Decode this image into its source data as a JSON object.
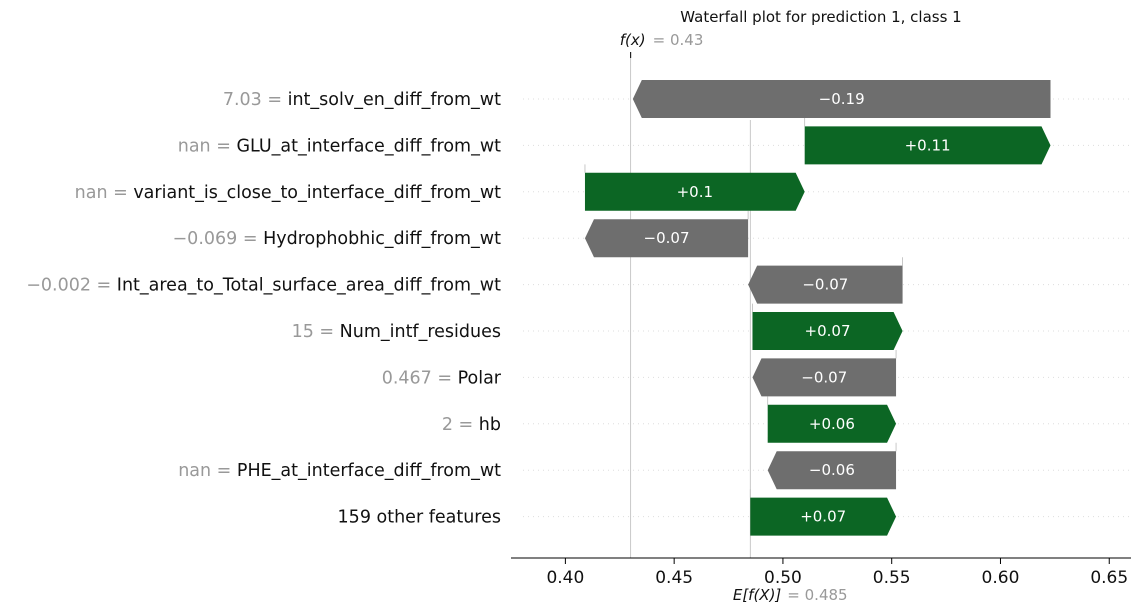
{
  "chart_data": {
    "type": "waterfall",
    "title": "Waterfall plot for prediction 1, class 1",
    "fx_label": "f(x)",
    "fx_value": "= 0.43",
    "fx": 0.43,
    "base_label": "E[f(X)]",
    "base_value": "= 0.485",
    "base": 0.485,
    "xlim": [
      0.375,
      0.66
    ],
    "xticks": [
      0.4,
      0.45,
      0.5,
      0.55,
      0.6,
      0.65
    ],
    "xtick_labels": [
      "0.40",
      "0.45",
      "0.50",
      "0.55",
      "0.60",
      "0.65"
    ],
    "features": [
      {
        "value_text": "7.03 =",
        "name": " int_solv_en_diff_from_wt",
        "start": 0.623,
        "end": 0.431,
        "label": "−0.19"
      },
      {
        "value_text": "nan =",
        "name": "GLU_at_interface_diff_from_wt",
        "start": 0.51,
        "end": 0.623,
        "label": "+0.11"
      },
      {
        "value_text": "nan =",
        "name": "variant_is_close_to_interface_diff_from_wt",
        "start": 0.409,
        "end": 0.51,
        "label": "+0.1"
      },
      {
        "value_text": "−0.069 =",
        "name": "Hydrophobhic_diff_from_wt",
        "start": 0.484,
        "end": 0.409,
        "label": "−0.07"
      },
      {
        "value_text": "−0.002 =",
        "name": "Int_area_to_Total_surface_area_diff_from_wt",
        "start": 0.555,
        "end": 0.484,
        "label": "−0.07"
      },
      {
        "value_text": "15 =",
        "name": "Num_intf_residues",
        "start": 0.486,
        "end": 0.555,
        "label": "+0.07"
      },
      {
        "value_text": "0.467 =",
        "name": "Polar",
        "start": 0.552,
        "end": 0.486,
        "label": "−0.07"
      },
      {
        "value_text": "2 =",
        "name": " hb",
        "start": 0.493,
        "end": 0.552,
        "label": "+0.06"
      },
      {
        "value_text": "nan =",
        "name": "PHE_at_interface_diff_from_wt",
        "start": 0.552,
        "end": 0.493,
        "label": "−0.06"
      },
      {
        "value_text": "",
        "name": "159 other features",
        "start": 0.485,
        "end": 0.552,
        "label": "+0.07"
      }
    ],
    "colors": {
      "positive": "#0c6624",
      "negative": "#6e6e6e",
      "muted_text": "#999999"
    }
  }
}
